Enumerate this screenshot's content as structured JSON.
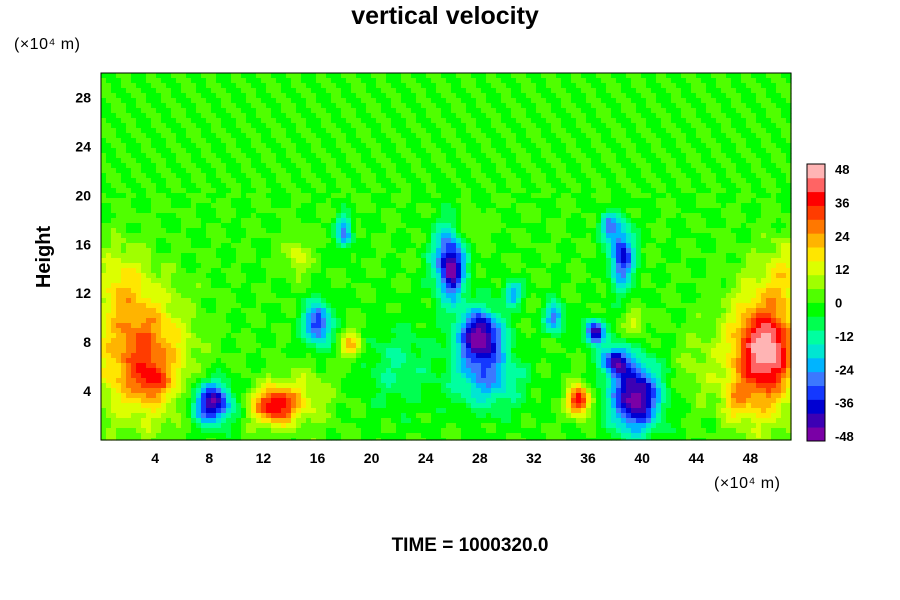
{
  "chart_data": {
    "type": "heatmap",
    "title": "vertical velocity",
    "ylabel": "Height",
    "x_unit_label": "(×10⁴ m)",
    "y_unit_label": "(×10⁴ m)",
    "footer": "TIME = 1000320.0",
    "x_ticks": [
      4,
      8,
      12,
      16,
      20,
      24,
      28,
      32,
      36,
      40,
      44,
      48
    ],
    "y_ticks": [
      4,
      8,
      12,
      16,
      20,
      24,
      28
    ],
    "xlim": [
      0,
      51
    ],
    "ylim": [
      0,
      30
    ],
    "colorbar_ticks": [
      48,
      36,
      24,
      12,
      0,
      -12,
      -24,
      -36,
      -48
    ],
    "colorbar_range": [
      -48,
      48
    ],
    "features": [
      {
        "x": 3.0,
        "y": 7.0,
        "sx": 3.2,
        "sy": 5.0,
        "v": 30
      },
      {
        "x": 1.5,
        "y": 13.0,
        "sx": 2.0,
        "sy": 3.0,
        "v": 12
      },
      {
        "x": 3.8,
        "y": 4.8,
        "sx": 1.2,
        "sy": 1.4,
        "v": 14
      },
      {
        "x": 8.2,
        "y": 3.0,
        "sx": 1.4,
        "sy": 1.7,
        "v": -44
      },
      {
        "x": 12.8,
        "y": 2.8,
        "sx": 1.6,
        "sy": 1.5,
        "v": 38
      },
      {
        "x": 15.0,
        "y": 3.5,
        "sx": 2.0,
        "sy": 2.5,
        "v": 10
      },
      {
        "x": 16.0,
        "y": 9.5,
        "sx": 1.0,
        "sy": 1.8,
        "v": -34
      },
      {
        "x": 14.5,
        "y": 15.0,
        "sx": 1.0,
        "sy": 1.5,
        "v": 12
      },
      {
        "x": 18.5,
        "y": 7.8,
        "sx": 0.8,
        "sy": 1.2,
        "v": 20
      },
      {
        "x": 18.0,
        "y": 17.0,
        "sx": 0.6,
        "sy": 1.4,
        "v": -26
      },
      {
        "x": 22.0,
        "y": 6.0,
        "sx": 2.5,
        "sy": 3.5,
        "v": -10
      },
      {
        "x": 25.8,
        "y": 14.5,
        "sx": 1.2,
        "sy": 3.0,
        "v": -40
      },
      {
        "x": 26.0,
        "y": 13.5,
        "sx": 0.5,
        "sy": 1.5,
        "v": -12
      },
      {
        "x": 28.0,
        "y": 8.5,
        "sx": 1.6,
        "sy": 2.2,
        "v": -46
      },
      {
        "x": 28.5,
        "y": 5.0,
        "sx": 2.5,
        "sy": 2.5,
        "v": -22
      },
      {
        "x": 30.5,
        "y": 12.0,
        "sx": 0.7,
        "sy": 1.0,
        "v": -24
      },
      {
        "x": 27.0,
        "y": 17.0,
        "sx": 1.0,
        "sy": 1.5,
        "v": 10
      },
      {
        "x": 33.5,
        "y": 10.0,
        "sx": 0.7,
        "sy": 1.2,
        "v": -28
      },
      {
        "x": 35.3,
        "y": 3.2,
        "sx": 0.8,
        "sy": 1.2,
        "v": 40
      },
      {
        "x": 36.5,
        "y": 8.8,
        "sx": 0.7,
        "sy": 1.0,
        "v": -44
      },
      {
        "x": 38.5,
        "y": 15.0,
        "sx": 0.9,
        "sy": 2.5,
        "v": -36
      },
      {
        "x": 39.5,
        "y": 3.5,
        "sx": 1.8,
        "sy": 2.8,
        "v": -48
      },
      {
        "x": 38.0,
        "y": 6.5,
        "sx": 1.0,
        "sy": 1.2,
        "v": -36
      },
      {
        "x": 39.5,
        "y": 9.5,
        "sx": 0.8,
        "sy": 1.2,
        "v": 12
      },
      {
        "x": 37.5,
        "y": 17.5,
        "sx": 0.7,
        "sy": 1.0,
        "v": -24
      },
      {
        "x": 48.8,
        "y": 7.0,
        "sx": 2.5,
        "sy": 5.0,
        "v": 38
      },
      {
        "x": 49.5,
        "y": 7.5,
        "sx": 1.5,
        "sy": 2.5,
        "v": 14
      },
      {
        "x": 46.8,
        "y": 3.2,
        "sx": 1.0,
        "sy": 1.6,
        "v": 10
      },
      {
        "x": 50.5,
        "y": 13.5,
        "sx": 1.5,
        "sy": 3.0,
        "v": 12
      },
      {
        "x": 44.0,
        "y": 6.0,
        "sx": 1.5,
        "sy": 3.0,
        "v": 6
      }
    ]
  },
  "colors": {
    "palette": [
      "#7a00a6",
      "#3c00b4",
      "#0000d2",
      "#1438ff",
      "#3c78ff",
      "#00b4ff",
      "#00e6d2",
      "#00ffa0",
      "#00ff50",
      "#00ff00",
      "#50ff00",
      "#a0ff00",
      "#dcff00",
      "#ffe600",
      "#ffb400",
      "#ff7800",
      "#ff3c00",
      "#ff0000",
      "#ff6464",
      "#ffb4b4"
    ]
  }
}
